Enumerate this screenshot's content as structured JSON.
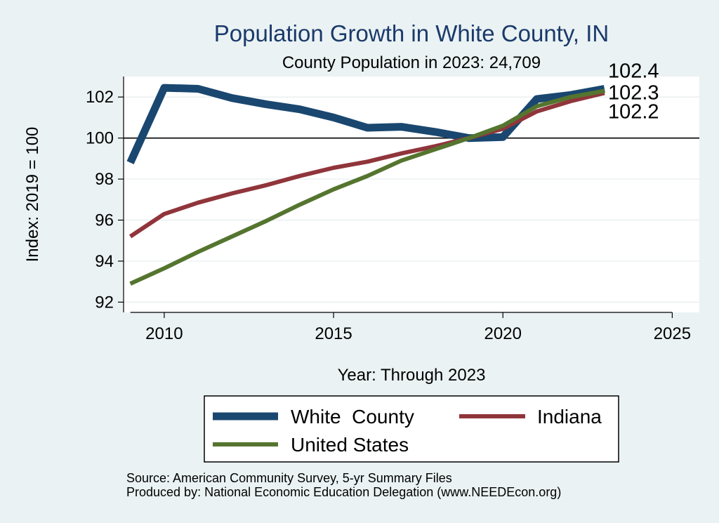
{
  "chart_data": {
    "type": "line",
    "title": "Population Growth in White County, IN",
    "subtitle": "County Population in 2023: 24,709",
    "xlabel": "Year: Through 2023",
    "ylabel": "Index: 2019 = 100",
    "xlim": [
      2008.8,
      2025.8
    ],
    "ylim": [
      91.5,
      103
    ],
    "x_ticks": [
      2010,
      2015,
      2020,
      2025
    ],
    "y_ticks": [
      92,
      94,
      96,
      98,
      100,
      102
    ],
    "reference_line": 100,
    "x": [
      2009,
      2010,
      2011,
      2012,
      2013,
      2014,
      2015,
      2016,
      2017,
      2018,
      2019,
      2020,
      2021,
      2022,
      2023
    ],
    "series": [
      {
        "name": "White  County",
        "color": "#1a476f",
        "values": [
          98.8,
          102.45,
          102.4,
          101.95,
          101.65,
          101.4,
          101.0,
          100.5,
          100.55,
          100.3,
          100.0,
          100.05,
          101.9,
          102.1,
          102.4
        ],
        "end_label": "102.4"
      },
      {
        "name": "Indiana",
        "color": "#90353b",
        "values": [
          95.2,
          96.3,
          96.85,
          97.3,
          97.7,
          98.15,
          98.55,
          98.85,
          99.25,
          99.6,
          100.0,
          100.45,
          101.3,
          101.8,
          102.2
        ],
        "end_label": "102.2"
      },
      {
        "name": "United States",
        "color": "#55752f",
        "values": [
          92.9,
          93.65,
          94.45,
          95.2,
          95.95,
          96.75,
          97.5,
          98.15,
          98.9,
          99.45,
          100.0,
          100.6,
          101.55,
          102.0,
          102.3
        ],
        "end_label": "102.3"
      }
    ]
  },
  "footer": {
    "source": "Source: American Community Survey, 5-yr Summary Files",
    "produced_by": "Produced by: National Economic Education Delegation (www.NEEDEcon.org)"
  }
}
